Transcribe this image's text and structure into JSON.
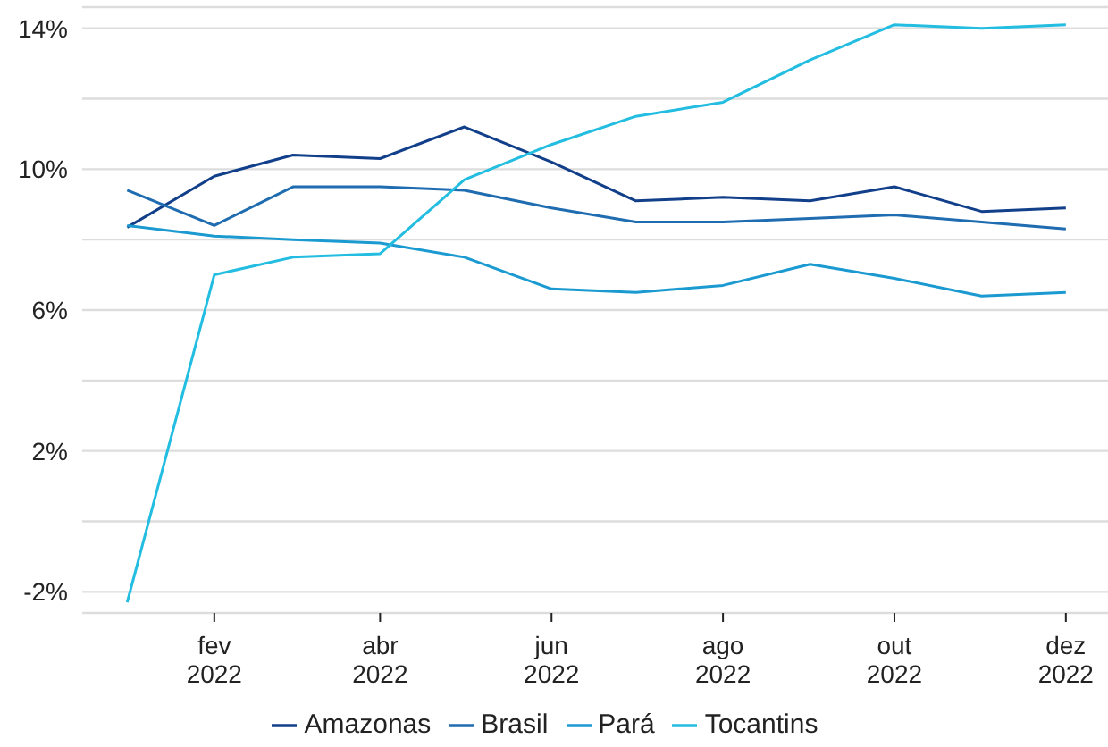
{
  "chart_data": {
    "type": "line",
    "x": [
      "2022-01",
      "2022-02",
      "2022-03",
      "2022-04",
      "2022-05",
      "2022-06",
      "2022-07",
      "2022-08",
      "2022-09",
      "2022-10",
      "2022-11",
      "2022-12"
    ],
    "series": [
      {
        "name": "Amazonas",
        "color": "#123f8a",
        "values": [
          8.35,
          9.8,
          10.4,
          10.3,
          11.2,
          10.2,
          9.1,
          9.2,
          9.1,
          9.5,
          8.8,
          8.9
        ]
      },
      {
        "name": "Brasil",
        "color": "#1f6db0",
        "values": [
          9.4,
          8.4,
          9.5,
          9.5,
          9.4,
          8.9,
          8.5,
          8.5,
          8.6,
          8.7,
          8.5,
          8.3
        ]
      },
      {
        "name": "Pará",
        "color": "#1a9ad0",
        "values": [
          8.4,
          8.1,
          8.0,
          7.9,
          7.5,
          6.6,
          6.5,
          6.7,
          7.3,
          6.9,
          6.4,
          6.5
        ]
      },
      {
        "name": "Tocantins",
        "color": "#22bde0",
        "values": [
          -2.3,
          7.0,
          7.5,
          7.6,
          9.7,
          10.7,
          11.5,
          11.9,
          13.1,
          14.1,
          14.0,
          14.1
        ]
      }
    ],
    "xlim": [
      "2021-12-16",
      "2022-12-16"
    ],
    "xticks": [
      {
        "value": "2022-02",
        "label": "fev\n2022"
      },
      {
        "value": "2022-04",
        "label": "abr\n2022"
      },
      {
        "value": "2022-06",
        "label": "jun\n2022"
      },
      {
        "value": "2022-08",
        "label": "ago\n2022"
      },
      {
        "value": "2022-10",
        "label": "out\n2022"
      },
      {
        "value": "2022-12",
        "label": "dez\n2022"
      }
    ],
    "ylim": [
      -2.6,
      14.6
    ],
    "yticks": [
      {
        "value": -2,
        "label": "-2%"
      },
      {
        "value": 0,
        "label": null
      },
      {
        "value": 2,
        "label": "2%"
      },
      {
        "value": 4,
        "label": null
      },
      {
        "value": 6,
        "label": "6%"
      },
      {
        "value": 8,
        "label": null
      },
      {
        "value": 10,
        "label": "10%"
      },
      {
        "value": 12,
        "label": null
      },
      {
        "value": 14,
        "label": "14%"
      }
    ],
    "grid": "y",
    "legend": "bottom",
    "marker": "none",
    "line_style": "solid"
  }
}
